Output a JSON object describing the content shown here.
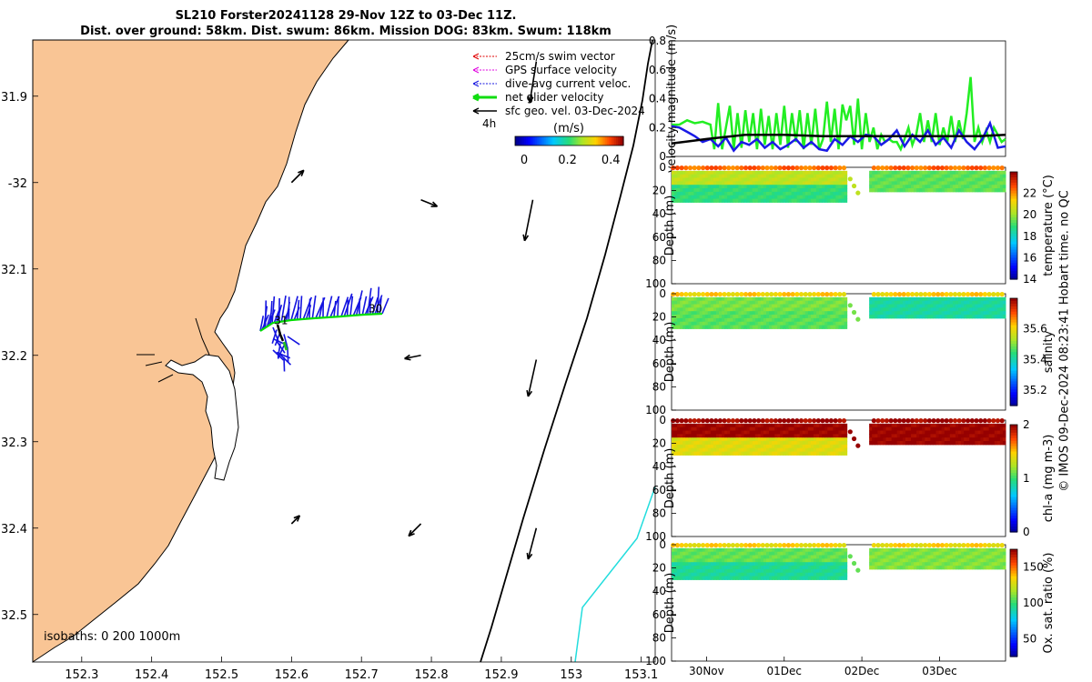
{
  "title": {
    "line1": "SL210 Forster20241128 29-Nov 12Z to 03-Dec 11Z.",
    "line2": "Dist. over ground: 58km. Dist. swum: 86km. Mission DOG: 83km. Swum: 118km"
  },
  "stamp": "© IMOS 09-Dec-2024 08:23:41 Hobart time. no QC",
  "colors": {
    "land": "#f9c595",
    "glider_track": "#00dd00",
    "current": "#0000e0",
    "isobath_200": "#000000",
    "isobath_1000": "#22dddd"
  },
  "chart_data": [
    {
      "type": "scatter",
      "name": "map",
      "x_ticks": [
        152.3,
        152.4,
        152.5,
        152.6,
        152.7,
        152.8,
        152.9,
        153,
        153.1
      ],
      "y_ticks": [
        -31.9,
        -32,
        -32.1,
        -32.2,
        -32.3,
        -32.4,
        -32.5
      ],
      "y_tick_labels": [
        "31.9",
        "-32",
        "32.1",
        "32.2",
        "32.3",
        "32.4",
        "32.5"
      ],
      "xlim": [
        152.23,
        153.12
      ],
      "ylim": [
        -32.555,
        -31.835
      ],
      "legend": [
        "25cm/s swim vector",
        "GPS surface velocity",
        "dive-avg current veloc.",
        "net glider velocity",
        "sfc geo. vel. 03-Dec-2024"
      ],
      "legend_note": "4h",
      "colorbar": {
        "label": "(m/s)",
        "ticks": [
          "0",
          "0.2",
          "0.4"
        ],
        "range": [
          0,
          0.5
        ]
      },
      "isobath_label": "isobaths: 0   200  1000m",
      "track_labels": [
        {
          "text": "30",
          "lon": 152.72,
          "lat": -32.15
        },
        {
          "text": "31",
          "lon": 152.585,
          "lat": -32.164
        }
      ],
      "sfc_vectors": [
        {
          "lon": 152.6,
          "lat": -32.0,
          "u": 0.15,
          "v": 0.15
        },
        {
          "lon": 152.785,
          "lat": -32.02,
          "u": 0.2,
          "v": -0.08
        },
        {
          "lon": 152.95,
          "lat": -31.86,
          "u": -0.08,
          "v": -0.5
        },
        {
          "lon": 152.945,
          "lat": -32.02,
          "u": -0.1,
          "v": -0.5
        },
        {
          "lon": 152.785,
          "lat": -32.2,
          "u": -0.2,
          "v": -0.04
        },
        {
          "lon": 152.95,
          "lat": -32.205,
          "u": -0.1,
          "v": -0.45
        },
        {
          "lon": 152.6,
          "lat": -32.395,
          "u": 0.1,
          "v": 0.1
        },
        {
          "lon": 152.785,
          "lat": -32.395,
          "u": -0.15,
          "v": -0.15
        },
        {
          "lon": 152.95,
          "lat": -32.4,
          "u": -0.1,
          "v": -0.38
        }
      ]
    },
    {
      "type": "line",
      "name": "velocity",
      "ylabel": "velocity magnitude (m/s)",
      "ylim": [
        0,
        0.8
      ],
      "y_ticks": [
        "0",
        "0.2",
        "0.4",
        "0.6",
        "0.8"
      ],
      "x_range_days": [
        29.55,
        33.85
      ],
      "series": [
        {
          "name": "net glider velocity",
          "color": "#22ee22",
          "x": [
            29.55,
            29.65,
            29.75,
            29.85,
            29.95,
            30.05,
            30.1,
            30.15,
            30.2,
            30.25,
            30.3,
            30.35,
            30.4,
            30.45,
            30.5,
            30.55,
            30.6,
            30.65,
            30.7,
            30.75,
            30.8,
            30.85,
            30.9,
            30.95,
            31.0,
            31.05,
            31.1,
            31.15,
            31.2,
            31.25,
            31.3,
            31.35,
            31.4,
            31.45,
            31.5,
            31.55,
            31.6,
            31.65,
            31.7,
            31.75,
            31.8,
            31.85,
            31.9,
            31.95,
            32.0,
            32.05,
            32.1,
            32.15,
            32.2,
            32.25,
            32.3,
            32.35,
            32.4,
            32.45,
            32.5,
            32.55,
            32.6,
            32.65,
            32.7,
            32.75,
            32.8,
            32.85,
            32.9,
            32.95,
            33.0,
            33.05,
            33.1,
            33.15,
            33.2,
            33.25,
            33.3,
            33.35,
            33.4,
            33.45,
            33.5,
            33.55,
            33.6,
            33.65,
            33.7,
            33.75,
            33.8,
            33.85
          ],
          "values": [
            0.22,
            0.22,
            0.25,
            0.23,
            0.24,
            0.22,
            0.05,
            0.37,
            0.05,
            0.2,
            0.35,
            0.05,
            0.3,
            0.06,
            0.32,
            0.1,
            0.3,
            0.05,
            0.33,
            0.08,
            0.28,
            0.05,
            0.3,
            0.08,
            0.35,
            0.06,
            0.3,
            0.1,
            0.32,
            0.05,
            0.3,
            0.08,
            0.33,
            0.05,
            0.12,
            0.38,
            0.1,
            0.33,
            0.05,
            0.36,
            0.25,
            0.35,
            0.08,
            0.4,
            0.05,
            0.3,
            0.1,
            0.2,
            0.05,
            0.15,
            0.1,
            0.12,
            0.1,
            0.1,
            0.05,
            0.12,
            0.2,
            0.08,
            0.15,
            0.3,
            0.1,
            0.25,
            0.1,
            0.3,
            0.08,
            0.2,
            0.1,
            0.28,
            0.1,
            0.25,
            0.12,
            0.3,
            0.55,
            0.1,
            0.2,
            0.1,
            0.18,
            0.1,
            0.2,
            0.15,
            0.1,
            0.12
          ]
        },
        {
          "name": "dive-avg current",
          "color": "#1a1ae6",
          "x": [
            29.55,
            29.65,
            29.75,
            29.85,
            29.95,
            30.05,
            30.15,
            30.25,
            30.35,
            30.45,
            30.55,
            30.65,
            30.75,
            30.85,
            30.95,
            31.05,
            31.15,
            31.25,
            31.35,
            31.45,
            31.55,
            31.65,
            31.75,
            31.85,
            31.95,
            32.05,
            32.15,
            32.25,
            32.35,
            32.45,
            32.55,
            32.65,
            32.75,
            32.85,
            32.95,
            33.05,
            33.15,
            33.25,
            33.35,
            33.45,
            33.55,
            33.65,
            33.75,
            33.85
          ],
          "values": [
            0.21,
            0.2,
            0.17,
            0.14,
            0.1,
            0.12,
            0.07,
            0.13,
            0.04,
            0.1,
            0.08,
            0.12,
            0.06,
            0.1,
            0.05,
            0.08,
            0.12,
            0.06,
            0.1,
            0.05,
            0.04,
            0.12,
            0.08,
            0.14,
            0.1,
            0.15,
            0.14,
            0.08,
            0.12,
            0.18,
            0.07,
            0.15,
            0.1,
            0.18,
            0.08,
            0.13,
            0.06,
            0.18,
            0.1,
            0.05,
            0.12,
            0.23,
            0.06,
            0.07
          ]
        },
        {
          "name": "sfc geo. vel.",
          "color": "#000000",
          "x": [
            29.55,
            30.0,
            30.5,
            31.0,
            31.5,
            32.0,
            32.5,
            33.0,
            33.5,
            33.85
          ],
          "values": [
            0.09,
            0.12,
            0.15,
            0.15,
            0.14,
            0.14,
            0.14,
            0.14,
            0.14,
            0.15
          ]
        }
      ]
    },
    {
      "type": "heatmap",
      "name": "temperature",
      "ylabel": "Depth (m)",
      "colorbar_label": "temperature (°C)",
      "clim": [
        14,
        24
      ],
      "colorbar_ticks": [
        "14",
        "16",
        "18",
        "20",
        "22"
      ],
      "colorbar_tick_values": [
        14,
        16,
        18,
        20,
        22
      ],
      "y_ticks": [
        "0",
        "20",
        "40",
        "60",
        "80",
        "100"
      ],
      "ylim": [
        0,
        100
      ],
      "x_range_days": [
        29.55,
        33.85
      ],
      "profile_depth_m": 30,
      "gap_days": [
        31.8,
        32.1
      ],
      "surface_value": 22.5,
      "upper_value": 20.5,
      "lower_value": 19.0,
      "after_gap_value": 19.5
    },
    {
      "type": "heatmap",
      "name": "salinity",
      "ylabel": "Depth (m)",
      "colorbar_label": "salinity",
      "clim": [
        35.1,
        35.8
      ],
      "colorbar_ticks": [
        "35.2",
        "35.4",
        "35.6"
      ],
      "colorbar_tick_values": [
        35.2,
        35.4,
        35.6
      ],
      "y_ticks": [
        "0",
        "20",
        "40",
        "60",
        "80",
        "100"
      ],
      "ylim": [
        0,
        100
      ],
      "x_range_days": [
        29.55,
        33.85
      ],
      "profile_depth_m": 30,
      "gap_days": [
        31.8,
        32.1
      ],
      "surface_value": 35.62,
      "upper_value": 35.5,
      "lower_value": 35.48,
      "after_gap_value": 35.42
    },
    {
      "type": "heatmap",
      "name": "chl-a",
      "ylabel": "Depth (m)",
      "colorbar_label": "chl-a (mg m-3)",
      "clim": [
        0,
        2
      ],
      "colorbar_ticks": [
        "0",
        "1",
        "2"
      ],
      "colorbar_tick_values": [
        0,
        1,
        2
      ],
      "y_ticks": [
        "0",
        "20",
        "40",
        "60",
        "80",
        "100"
      ],
      "ylim": [
        0,
        100
      ],
      "x_range_days": [
        29.55,
        33.85
      ],
      "profile_depth_m": 30,
      "gap_days": [
        31.8,
        32.1
      ],
      "surface_value": 2.0,
      "upper_value": 2.0,
      "lower_value": 1.4,
      "after_gap_value": 2.0
    },
    {
      "type": "heatmap",
      "name": "oxygen",
      "ylabel": "Depth (m)",
      "colorbar_label": "Ox. sat. ratio (%)",
      "clim": [
        25,
        175
      ],
      "colorbar_ticks": [
        "50",
        "100",
        "150"
      ],
      "colorbar_tick_values": [
        50,
        100,
        150
      ],
      "y_ticks": [
        "0",
        "20",
        "40",
        "60",
        "80",
        "100"
      ],
      "ylim": [
        0,
        100
      ],
      "x_range_days": [
        29.55,
        33.85
      ],
      "profile_depth_m": 30,
      "gap_days": [
        31.8,
        32.1
      ],
      "surface_value": 135,
      "upper_value": 108,
      "lower_value": 95,
      "after_gap_value": 112
    }
  ],
  "time_axis": {
    "ticks": [
      {
        "label": "30Nov",
        "day": 30.0
      },
      {
        "label": "01Dec",
        "day": 31.0
      },
      {
        "label": "02Dec",
        "day": 32.0
      },
      {
        "label": "03Dec",
        "day": 33.0
      }
    ]
  }
}
